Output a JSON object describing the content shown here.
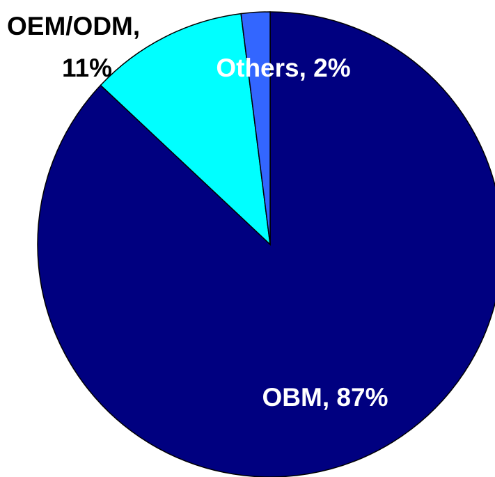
{
  "chart_data": {
    "type": "pie",
    "labels": [
      [
        "OBM, 87%"
      ],
      [
        "OEM/ODM,",
        "11%"
      ],
      [
        "Others, 2%"
      ]
    ],
    "values": [
      87,
      11,
      2
    ],
    "colors": [
      "#000080",
      "#00ffff",
      "#3366ff"
    ],
    "label_colors": [
      "#ffffff",
      "#000000",
      "#ffffff"
    ]
  }
}
